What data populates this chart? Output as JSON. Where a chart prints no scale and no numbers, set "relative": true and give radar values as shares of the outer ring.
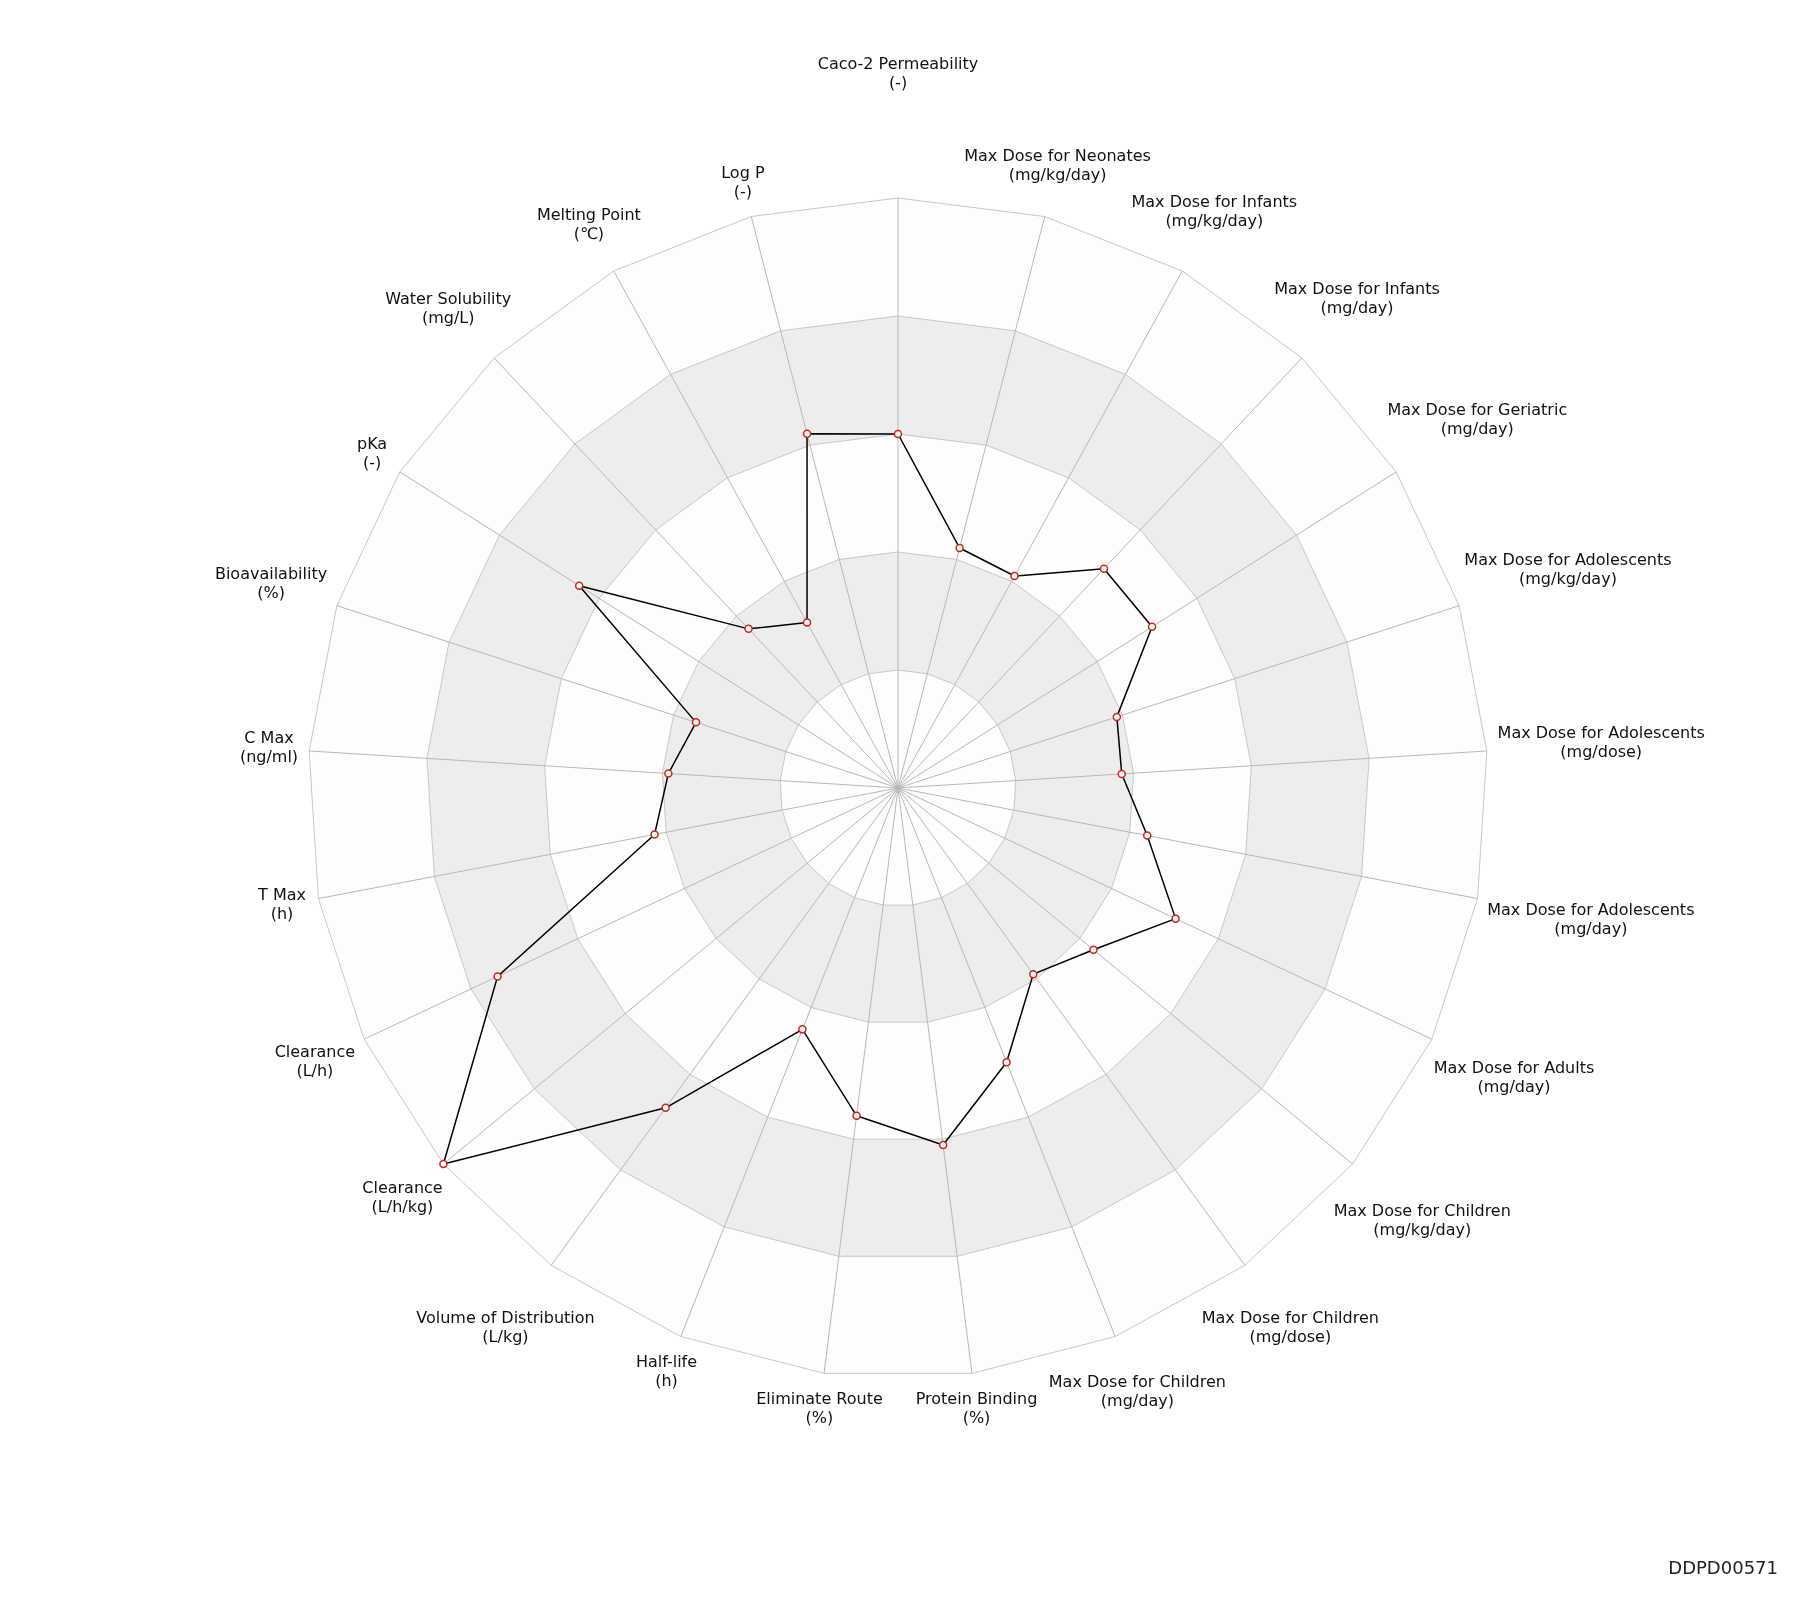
{
  "chart_data": {
    "type": "radar",
    "relative": true,
    "legend": false,
    "marker": "circle",
    "grid": true,
    "categories": [
      "Caco-2 Permeability (-)",
      "Max Dose for Neonates (mg/kg/day)",
      "Max Dose for Infants (mg/kg/day)",
      "Max Dose for Infants (mg/day)",
      "Max Dose for Geriatric (mg/day)",
      "Max Dose for Adolescents (mg/kg/day)",
      "Max Dose for Adolescents (mg/dose)",
      "Max Dose for Adolescents (mg/day)",
      "Max Dose for Adults (mg/day)",
      "Max Dose for Children (mg/kg/day)",
      "Max Dose for Children (mg/dose)",
      "Max Dose for Children (mg/day)",
      "Protein Binding (%)",
      "Eliminate Route (%)",
      "Half-life (h)",
      "Volume of Distribution (L/kg)",
      "Clearance (L/h/kg)",
      "Clearance (L/h)",
      "T Max (h)",
      "C Max (ng/ml)",
      "Bioavailability (%)",
      "pKa (-)",
      "Water Solubility (mg/L)",
      "Melting Point (℃)",
      "Log P (-)"
    ],
    "series": [
      {
        "color": "#000000",
        "values": [
          0.6,
          0.42,
          0.41,
          0.51,
          0.51,
          0.39,
          0.38,
          0.43,
          0.52,
          0.43,
          0.39,
          0.5,
          0.61,
          0.56,
          0.44,
          0.67,
          1.0,
          0.75,
          0.42,
          0.39,
          0.36,
          0.64,
          0.37,
          0.32,
          0.62
        ]
      }
    ],
    "annotations": [
      "DDPD00571"
    ]
  }
}
